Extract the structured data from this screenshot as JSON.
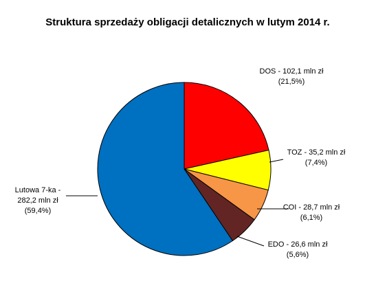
{
  "chart_data": {
    "type": "pie",
    "title": "Struktura sprzedaży obligacji detalicznych w lutym 2014 r.",
    "unit": "mln zł",
    "slices": [
      {
        "name": "DOS",
        "value": 102.1,
        "percent": 21.5,
        "color": "#FF0000",
        "label_lines": [
          "DOS - 102,1 mln zł",
          "(21,5%)"
        ]
      },
      {
        "name": "TOZ",
        "value": 35.2,
        "percent": 7.4,
        "color": "#FFFF00",
        "label_lines": [
          "TOZ - 35,2 mln zł",
          "(7,4%)"
        ]
      },
      {
        "name": "COI",
        "value": 28.7,
        "percent": 6.1,
        "color": "#F79646",
        "label_lines": [
          "COI - 28,7 mln zł",
          "(6,1%)"
        ]
      },
      {
        "name": "EDO",
        "value": 26.6,
        "percent": 5.6,
        "color": "#632523",
        "label_lines": [
          "EDO - 26,6 mln zł",
          "(5,6%)"
        ]
      },
      {
        "name": "Lutowa 7-ka",
        "value": 282.2,
        "percent": 59.4,
        "color": "#0070C0",
        "label_lines": [
          "Lutowa 7-ka -",
          "282,2 mln zł",
          "(59,4%)"
        ]
      }
    ],
    "start_angle": "12 o'clock",
    "direction": "clockwise",
    "legend": "none"
  }
}
